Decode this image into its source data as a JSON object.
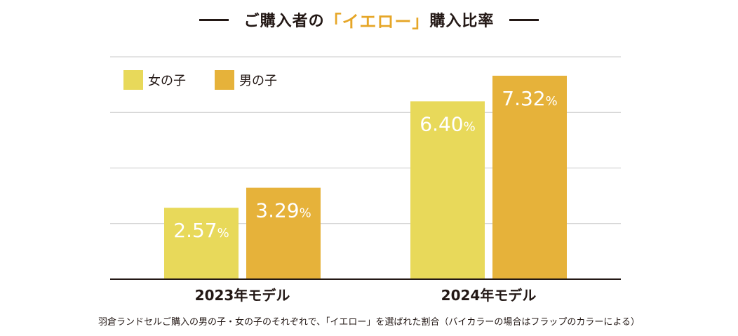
{
  "chart_data": {
    "type": "bar",
    "title_prefix": "ご購入者の",
    "title_highlight": "「イエロー」",
    "title_suffix": "購入比率",
    "categories": [
      "2023年モデル",
      "2024年モデル"
    ],
    "series": [
      {
        "name": "女の子",
        "values": [
          2.57,
          6.4
        ],
        "labels": [
          "2.57",
          "6.40"
        ],
        "color": "#e8d95a"
      },
      {
        "name": "男の子",
        "values": [
          3.29,
          7.32
        ],
        "labels": [
          "3.29",
          "7.32"
        ],
        "color": "#e6b23a"
      }
    ],
    "unit": "%",
    "ylim": [
      0,
      8
    ],
    "grid": true,
    "legend_position": "top-left",
    "footnote": "羽倉ランドセルご購入の男の子・女の子のそれぞれで、「イエロー」を選ばれた割合（バイカラーの場合はフラップのカラーによる）"
  },
  "colors": {
    "text": "#231815",
    "highlight": "#e6a627",
    "gridline": "#c9c9c9",
    "axis": "#231815"
  }
}
